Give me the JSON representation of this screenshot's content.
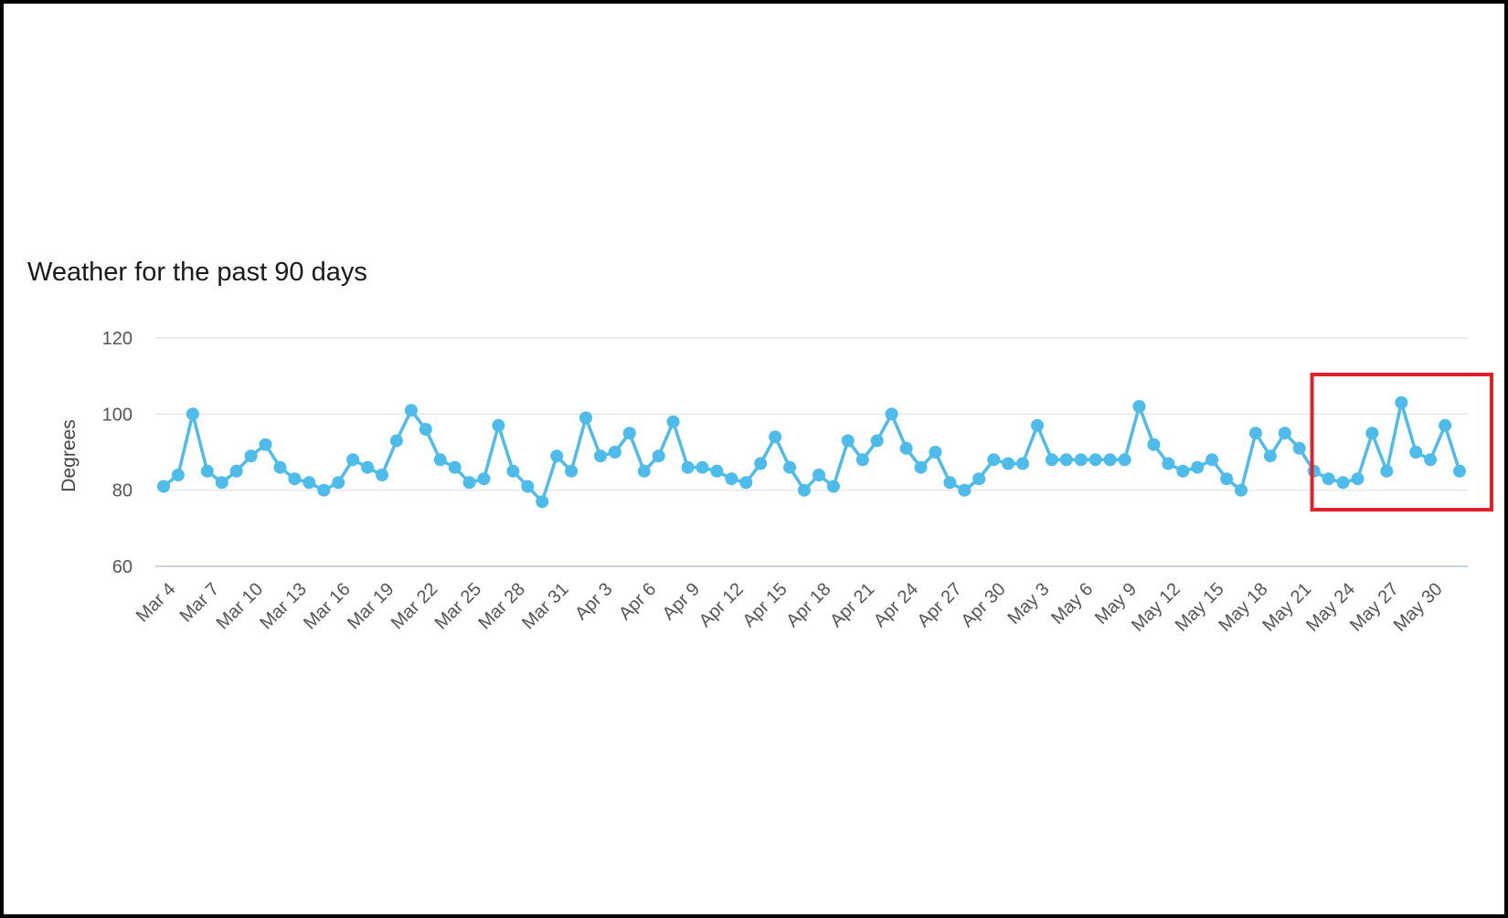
{
  "chart_data": {
    "type": "line",
    "title": "Weather for the past 90 days",
    "xlabel": "",
    "ylabel": "Degrees",
    "ylim": [
      60,
      120
    ],
    "yticks": [
      120,
      100,
      80,
      60
    ],
    "grid": true,
    "legend": "none",
    "colors": {
      "series": "#4dbcea",
      "grid": "#e6e6e6",
      "axis": "#c8d0dc",
      "highlight": "#e0202a"
    },
    "x_tick_labels": [
      "Mar 4",
      "Mar 7",
      "Mar 10",
      "Mar 13",
      "Mar 16",
      "Mar 19",
      "Mar 22",
      "Mar 25",
      "Mar 28",
      "Mar 31",
      "Apr 3",
      "Apr 6",
      "Apr 9",
      "Apr 12",
      "Apr 15",
      "Apr 18",
      "Apr 21",
      "Apr 24",
      "Apr 27",
      "Apr 30",
      "May 3",
      "May 6",
      "May 9",
      "May 12",
      "May 15",
      "May 18",
      "May 21",
      "May 24",
      "May 27",
      "May 30"
    ],
    "tick_every": 3,
    "series": [
      {
        "values": [
          81,
          84,
          100,
          85,
          82,
          85,
          89,
          92,
          86,
          83,
          82,
          80,
          82,
          88,
          86,
          84,
          93,
          101,
          96,
          88,
          86,
          82,
          83,
          97,
          85,
          81,
          77,
          89,
          85,
          99,
          89,
          90,
          95,
          85,
          89,
          98,
          86,
          86,
          85,
          83,
          82,
          87,
          94,
          86,
          80,
          84,
          81,
          93,
          88,
          93,
          100,
          91,
          86,
          90,
          82,
          80,
          83,
          88,
          87,
          87,
          97,
          88,
          88,
          88,
          88,
          88,
          88,
          102,
          92,
          87,
          85,
          86,
          88,
          83,
          80,
          95,
          89,
          95,
          91,
          85,
          83,
          82,
          83,
          95,
          85,
          103,
          90,
          88,
          97,
          85
        ]
      }
    ],
    "highlight_range": [
      "May 24",
      "May 30"
    ]
  }
}
